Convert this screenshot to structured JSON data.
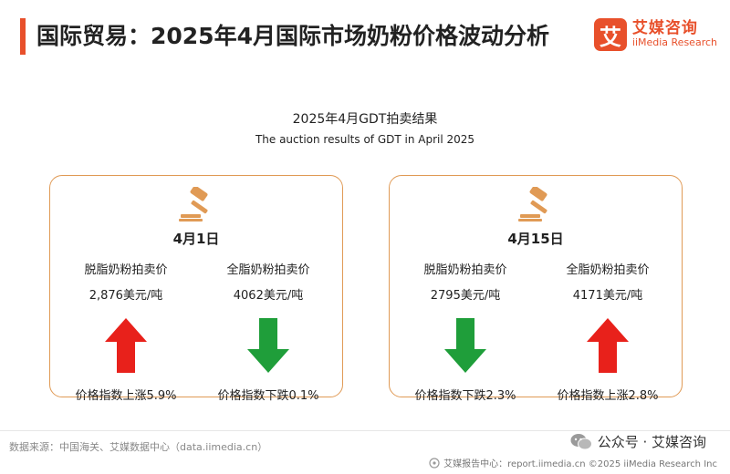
{
  "header": {
    "title": "国际贸易：2025年4月国际市场奶粉价格波动分析",
    "brand_logo_char": "艾",
    "brand_cn": "艾媒咨询",
    "brand_en": "iiMedia Research",
    "accent_color": "#e8502b"
  },
  "subtitle": {
    "cn": "2025年4月GDT拍卖结果",
    "en": "The auction results of GDT in April 2025"
  },
  "cards": [
    {
      "icon": "gavel-icon",
      "date": "4月1日",
      "items": [
        {
          "label": "脱脂奶粉拍卖价",
          "price": "2,876美元/吨",
          "direction": "up",
          "change": "价格指数上涨5.9%"
        },
        {
          "label": "全脂奶粉拍卖价",
          "price": "4062美元/吨",
          "direction": "down",
          "change": "价格指数下跌0.1%"
        }
      ]
    },
    {
      "icon": "gavel-icon",
      "date": "4月15日",
      "items": [
        {
          "label": "脱脂奶粉拍卖价",
          "price": "2795美元/吨",
          "direction": "down",
          "change": "价格指数下跌2.3%"
        },
        {
          "label": "全脂奶粉拍卖价",
          "price": "4171美元/吨",
          "direction": "up",
          "change": "价格指数上涨2.8%"
        }
      ]
    }
  ],
  "colors": {
    "up": "#e8211b",
    "down": "#1f9e3a",
    "card_border": "#e09a55"
  },
  "footer": {
    "source": "数据来源：中国海关、艾媒数据中心（data.iimedia.cn）",
    "wechat": "公众号 · 艾媒咨询",
    "copyright": "艾媒报告中心：report.iimedia.cn   ©2025  iiMedia Research  Inc"
  }
}
